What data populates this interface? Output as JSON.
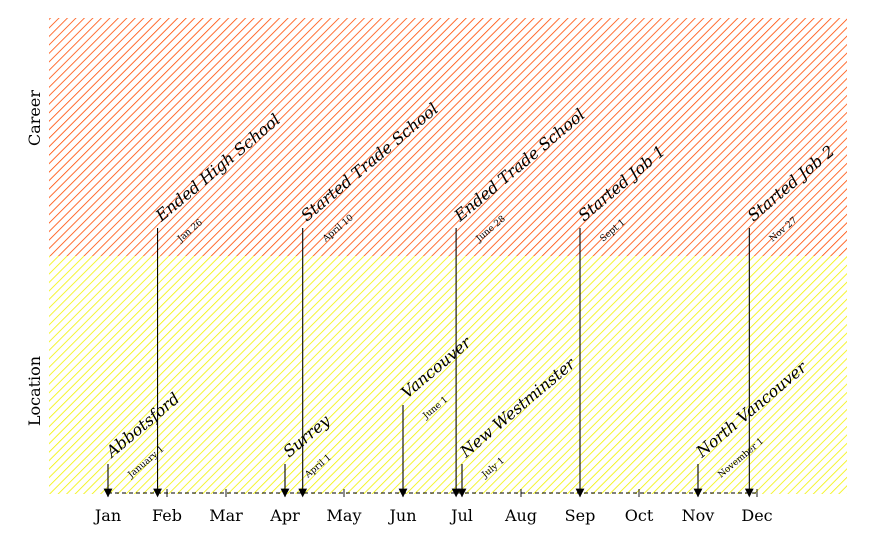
{
  "bands": [
    {
      "id": "career",
      "label": "Career",
      "color": "#ff4a00"
    },
    {
      "id": "location",
      "label": "Location",
      "color": "#f2f200"
    }
  ],
  "months": [
    "Jan",
    "Feb",
    "Mar",
    "Apr",
    "May",
    "Jun",
    "Jul",
    "Aug",
    "Sep",
    "Oct",
    "Nov",
    "Dec"
  ],
  "career_events": [
    {
      "id": "ended-high-school",
      "title": "Ended High School",
      "date": "Jan 26",
      "month": 0.84
    },
    {
      "id": "started-trade-school",
      "title": "Started Trade School",
      "date": "April 10",
      "month": 3.3
    },
    {
      "id": "ended-trade-school",
      "title": "Ended Trade School",
      "date": "June 28",
      "month": 5.9
    },
    {
      "id": "started-job-1",
      "title": "Started Job 1",
      "date": "Sept 1",
      "month": 8.0
    },
    {
      "id": "started-job-2",
      "title": "Started Job 2",
      "date": "Nov 27",
      "month": 10.87
    }
  ],
  "location_events": [
    {
      "id": "abbotsford",
      "title": "Abbotsford",
      "date": "January 1",
      "month": 0.0,
      "level": "low"
    },
    {
      "id": "surrey",
      "title": "Surrey",
      "date": "April 1",
      "month": 3.0,
      "level": "low"
    },
    {
      "id": "vancouver",
      "title": "Vancouver",
      "date": "June 1",
      "month": 5.0,
      "level": "mid"
    },
    {
      "id": "new-westminster",
      "title": "New Westminster",
      "date": "July 1",
      "month": 6.0,
      "level": "low"
    },
    {
      "id": "north-vancouver",
      "title": "North Vancouver",
      "date": "November 1",
      "month": 10.0,
      "level": "low"
    }
  ]
}
